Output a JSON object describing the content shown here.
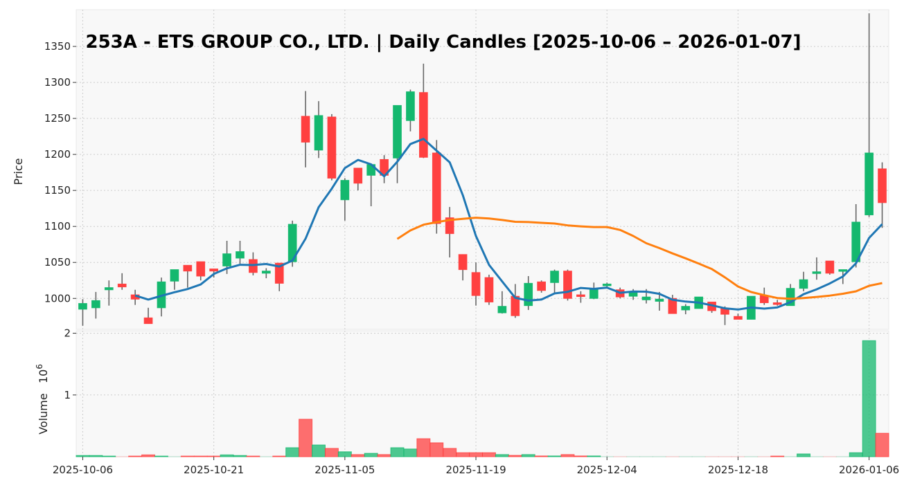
{
  "chart_data": {
    "type": "candlestick",
    "title": "253A - ETS GROUP CO., LTD. | Daily Candles [2025-10-06 – 2026-01-07]",
    "ylabel": "Price",
    "volume_label": "Volume",
    "volume_exponent": "10",
    "volume_exponent_power": "6",
    "ylim": [
      957,
      1401
    ],
    "volume_ylim": [
      0,
      2040000
    ],
    "yticks": [
      1000,
      1050,
      1100,
      1150,
      1200,
      1250,
      1300,
      1350
    ],
    "volume_yticks": [
      1,
      2
    ],
    "xtick_labels": [
      {
        "index": 0,
        "label": "2025-10-06"
      },
      {
        "index": 10,
        "label": "2025-10-21"
      },
      {
        "index": 20,
        "label": "2025-11-05"
      },
      {
        "index": 30,
        "label": "2025-11-19"
      },
      {
        "index": 40,
        "label": "2025-12-04"
      },
      {
        "index": 50,
        "label": "2025-12-18"
      },
      {
        "index": 60,
        "label": "2026-01-06"
      }
    ],
    "grid": true,
    "moving_averages": [
      {
        "period": 5,
        "color": "#1f77b4"
      },
      {
        "period": 25,
        "color": "#ff7f0e"
      }
    ],
    "colors": {
      "up": "#14b86e",
      "down": "#ff4040",
      "wick": "#666666"
    },
    "ohlc": [
      [
        985,
        999,
        962,
        993
      ],
      [
        987,
        1009,
        972,
        997
      ],
      [
        1012,
        1025,
        990,
        1015
      ],
      [
        1020,
        1035,
        1012,
        1016
      ],
      [
        1005,
        1012,
        991,
        999
      ],
      [
        973,
        987,
        965,
        965
      ],
      [
        987,
        1029,
        975,
        1023
      ],
      [
        1024,
        1040,
        1012,
        1040
      ],
      [
        1046,
        1046,
        1015,
        1038
      ],
      [
        1051,
        1051,
        1025,
        1031
      ],
      [
        1041,
        1041,
        1029,
        1038
      ],
      [
        1045,
        1080,
        1034,
        1062
      ],
      [
        1056,
        1080,
        1048,
        1065
      ],
      [
        1054,
        1064,
        1032,
        1036
      ],
      [
        1035,
        1042,
        1028,
        1038
      ],
      [
        1049,
        1049,
        1010,
        1021
      ],
      [
        1051,
        1108,
        1044,
        1103
      ],
      [
        1253,
        1288,
        1182,
        1217
      ],
      [
        1206,
        1274,
        1195,
        1254
      ],
      [
        1252,
        1256,
        1164,
        1167
      ],
      [
        1137,
        1167,
        1108,
        1164
      ],
      [
        1181,
        1181,
        1150,
        1160
      ],
      [
        1171,
        1186,
        1128,
        1186
      ],
      [
        1193,
        1199,
        1160,
        1171
      ],
      [
        1195,
        1268,
        1160,
        1268
      ],
      [
        1247,
        1290,
        1232,
        1287
      ],
      [
        1286,
        1326,
        1195,
        1196
      ],
      [
        1202,
        1220,
        1090,
        1104
      ],
      [
        1112,
        1127,
        1057,
        1090
      ],
      [
        1061,
        1061,
        1025,
        1040
      ],
      [
        1036,
        1050,
        990,
        1004
      ],
      [
        1029,
        1033,
        991,
        995
      ],
      [
        980,
        1010,
        979,
        989
      ],
      [
        1003,
        1020,
        973,
        976
      ],
      [
        990,
        1031,
        984,
        1021
      ],
      [
        1023,
        1025,
        1008,
        1011
      ],
      [
        1022,
        1040,
        1008,
        1038
      ],
      [
        1038,
        1040,
        997,
        1000
      ],
      [
        1005,
        1010,
        994,
        1003
      ],
      [
        1000,
        1022,
        999,
        1014
      ],
      [
        1018,
        1022,
        1014,
        1020
      ],
      [
        1012,
        1015,
        1000,
        1002
      ],
      [
        1003,
        1013,
        998,
        1009
      ],
      [
        998,
        1013,
        993,
        1002
      ],
      [
        996,
        1009,
        983,
        999
      ],
      [
        1000,
        1005,
        979,
        979
      ],
      [
        984,
        992,
        978,
        989
      ],
      [
        986,
        1002,
        986,
        1002
      ],
      [
        995,
        995,
        980,
        983
      ],
      [
        986,
        989,
        963,
        978
      ],
      [
        975,
        979,
        971,
        971
      ],
      [
        971,
        1003,
        971,
        1003
      ],
      [
        1004,
        1015,
        991,
        994
      ],
      [
        994,
        998,
        990,
        992
      ],
      [
        990,
        1020,
        990,
        1014
      ],
      [
        1014,
        1037,
        1010,
        1026
      ],
      [
        1035,
        1057,
        1026,
        1037
      ],
      [
        1052,
        1052,
        1033,
        1035
      ],
      [
        1038,
        1040,
        1020,
        1040
      ],
      [
        1051,
        1131,
        1043,
        1106
      ],
      [
        1116,
        1396,
        1113,
        1202
      ],
      [
        1180,
        1189,
        1098,
        1133
      ]
    ],
    "volume": [
      20000,
      20000,
      10000,
      3000,
      10000,
      30000,
      10000,
      3000,
      10000,
      10000,
      10000,
      30000,
      20000,
      10000,
      3000,
      10000,
      146000,
      607000,
      190000,
      135000,
      80000,
      35000,
      55000,
      35000,
      146000,
      125000,
      292000,
      225000,
      135000,
      65000,
      65000,
      65000,
      35000,
      22000,
      35000,
      12000,
      12000,
      35000,
      12000,
      12000,
      3000,
      3000,
      3000,
      3000,
      3000,
      3000,
      3000,
      3000,
      3000,
      3000,
      3000,
      3000,
      3000,
      10000,
      4000,
      45000,
      3000,
      3000,
      3000,
      65000,
      1880000,
      380000
    ]
  }
}
